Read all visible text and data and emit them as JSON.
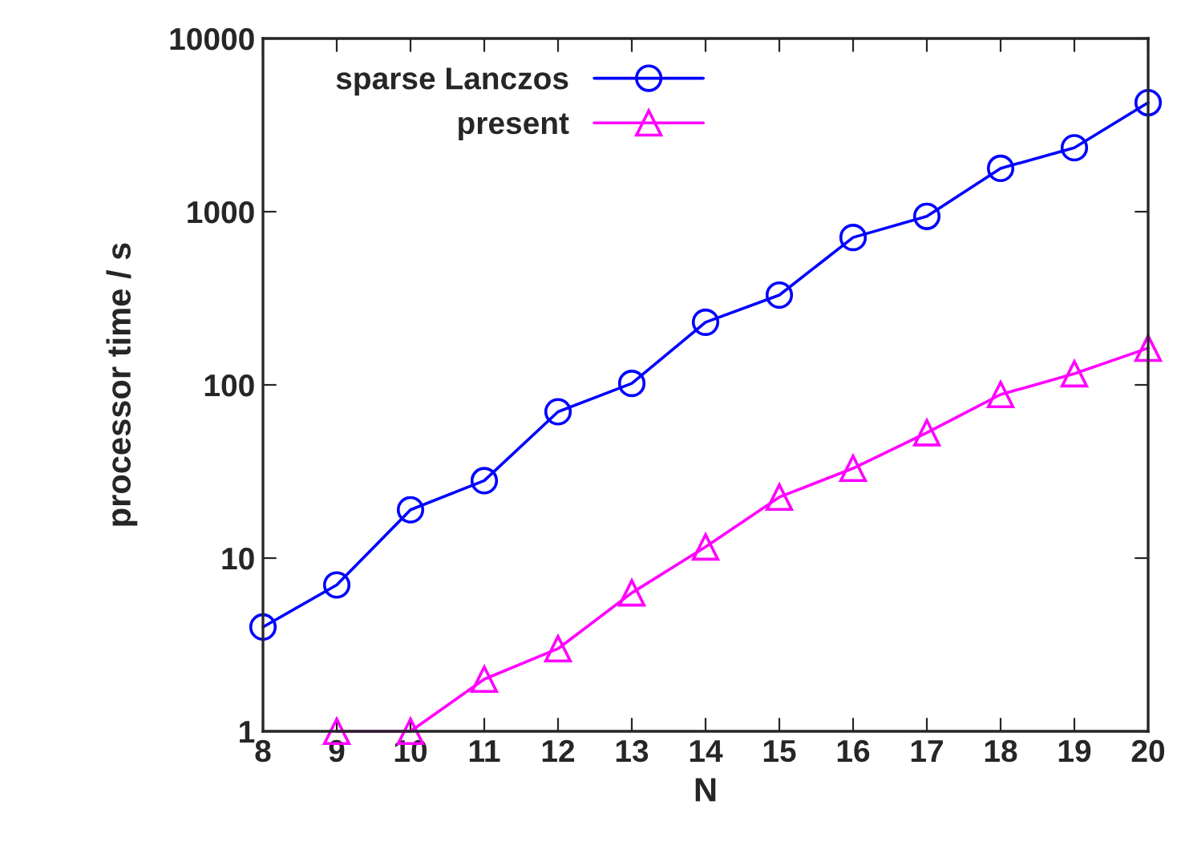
{
  "chart_data": {
    "type": "line",
    "xlabel": "N",
    "ylabel": "processor time / s",
    "x": [
      8,
      9,
      10,
      11,
      12,
      13,
      14,
      15,
      16,
      17,
      18,
      19,
      20
    ],
    "series": [
      {
        "name": "sparse Lanczos",
        "color": "#0000ff",
        "marker": "circle",
        "values": [
          4.0,
          7.0,
          19,
          28,
          70,
          102,
          230,
          330,
          710,
          940,
          1780,
          2340,
          4260
        ]
      },
      {
        "name": "present",
        "color": "#ff00ff",
        "marker": "triangle",
        "values": [
          null,
          1,
          1,
          2,
          3,
          6.3,
          11.6,
          22.5,
          33,
          53,
          88,
          116,
          163
        ]
      }
    ],
    "log": "y",
    "xlim": [
      8,
      20
    ],
    "xticks": [
      8,
      9,
      10,
      11,
      12,
      13,
      14,
      15,
      16,
      17,
      18,
      19,
      20
    ],
    "ylim": [
      1,
      10000
    ],
    "yticks": [
      1,
      10,
      100,
      1000,
      10000
    ],
    "grid": false,
    "legend": "top left",
    "line_style": "solid"
  }
}
